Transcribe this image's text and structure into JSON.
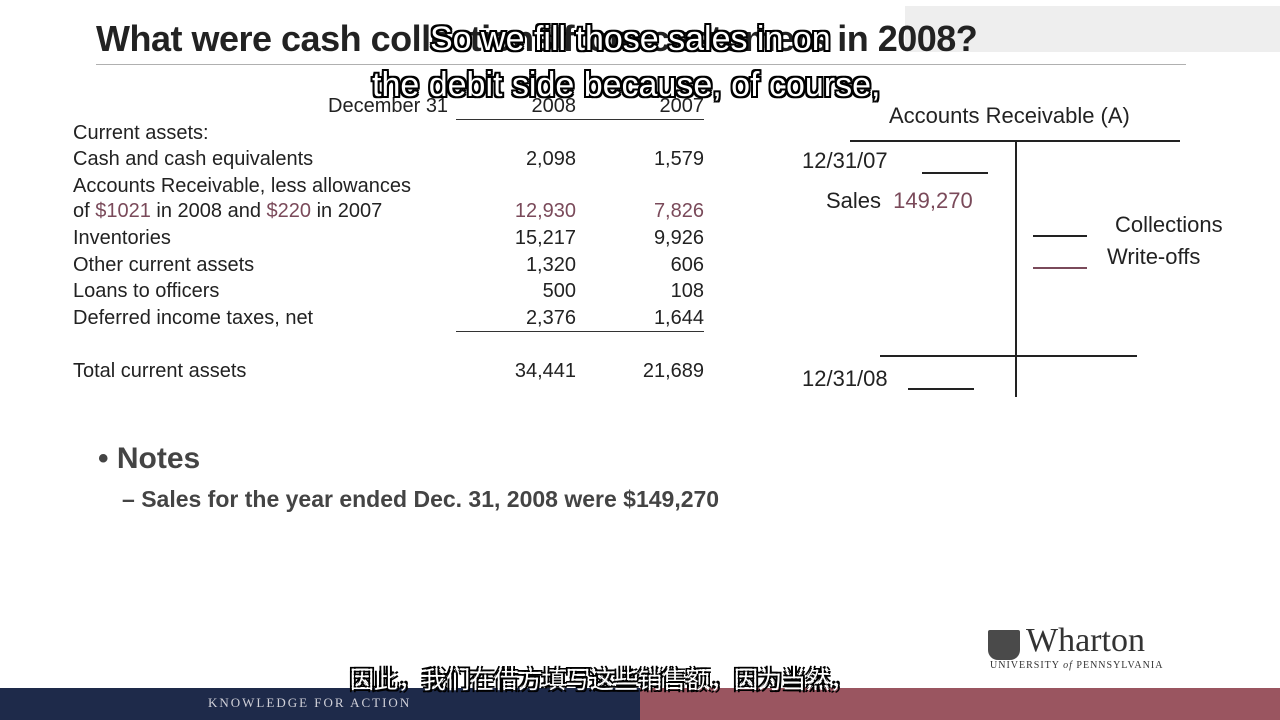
{
  "title": "What were cash collections from customers in 2008?",
  "subtitles": {
    "line1": "So we fill those sales in on",
    "line2": "the debit side because, of course,",
    "chinese": "因此，我们在借方填写这些销售额，因为当然，"
  },
  "balance_sheet": {
    "header_label": "December 31",
    "year_2008": "2008",
    "year_2007": "2007",
    "section_label": "Current assets:",
    "rows": [
      {
        "label": "Cash and cash equivalents",
        "v2008": "2,098",
        "v2007": "1,579"
      },
      {
        "label": "Accounts Receivable, less allowances",
        "label2_pre": "of ",
        "label2_a": "$1021",
        "label2_mid": " in 2008 and ",
        "label2_b": "$220",
        "label2_post": " in 2007",
        "v2008": "12,930",
        "v2007": "7,826"
      },
      {
        "label": "Inventories",
        "v2008": "15,217",
        "v2007": "9,926"
      },
      {
        "label": "Other current assets",
        "v2008": "1,320",
        "v2007": "606"
      },
      {
        "label": "Loans to officers",
        "v2008": "500",
        "v2007": "108"
      },
      {
        "label": "Deferred income taxes, net",
        "v2008": "2,376",
        "v2007": "1,644"
      }
    ],
    "total": {
      "label": "Total current assets",
      "v2008": "34,441",
      "v2007": "21,689"
    }
  },
  "t_account": {
    "title": "Accounts Receivable (A)",
    "opening_date": "12/31/07",
    "sales_label": "Sales",
    "sales_value": "149,270",
    "collections_label": "Collections",
    "writeoffs_label": "Write-offs",
    "closing_date": "12/31/08"
  },
  "notes": {
    "heading": "Notes",
    "item": "Sales for the year ended Dec. 31, 2008 were $149,270"
  },
  "logo": {
    "word": "Wharton",
    "univ_pre": "UNIVERSITY ",
    "univ_of": "of",
    "univ_post": " PENNSYLVANIA"
  },
  "footer": {
    "text": "KNOWLEDGE FOR ACTION"
  },
  "colors": {
    "footer_left": "#1e2a4a",
    "footer_right": "#9a5560",
    "highlight": "#7a4a5a"
  }
}
